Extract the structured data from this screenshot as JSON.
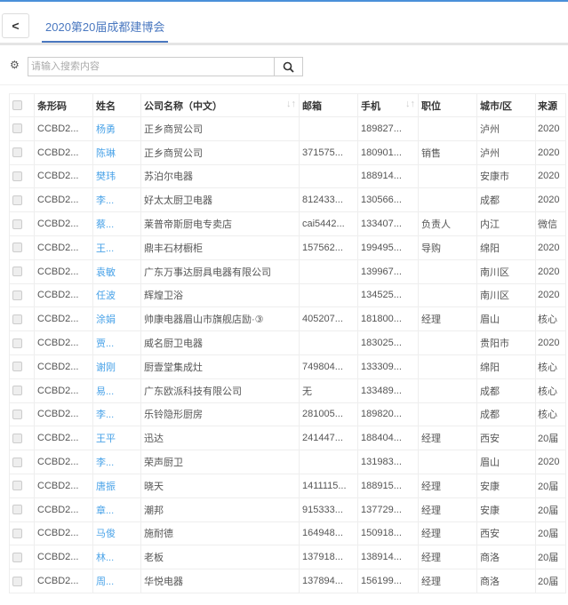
{
  "header": {
    "back_label": "<",
    "tab": "2020第20届成都建博会"
  },
  "search": {
    "placeholder": "请输入搜索内容"
  },
  "icons": {
    "settings": "gear-icon",
    "search": "search-icon",
    "sort": "sort-icon"
  },
  "table": {
    "columns": [
      "条形码",
      "姓名",
      "公司名称（中文）",
      "邮箱",
      "手机",
      "职位",
      "城市/区",
      "来源"
    ],
    "rows": [
      [
        "CCBD2...",
        "杨勇",
        "正乡商贸公司",
        "",
        "189827...",
        "",
        "泸州",
        "2020"
      ],
      [
        "CCBD2...",
        "陈琳",
        "正乡商贸公司",
        "371575...",
        "180901...",
        "销售",
        "泸州",
        "2020"
      ],
      [
        "CCBD2...",
        "樊玮",
        "苏泊尔电器",
        "",
        "188914...",
        "",
        "安康市",
        "2020"
      ],
      [
        "CCBD2...",
        "李...",
        "好太太厨卫电器",
        "812433...",
        "130566...",
        "",
        "成都",
        "2020"
      ],
      [
        "CCBD2...",
        "蔡...",
        "莱普帝斯厨电专卖店",
        "cai5442...",
        "133407...",
        "负责人",
        "内江",
        "微信"
      ],
      [
        "CCBD2...",
        "王...",
        "鼎丰石材橱柜",
        "157562...",
        "199495...",
        "导购",
        "绵阳",
        "2020"
      ],
      [
        "CCBD2...",
        "袁敏",
        "广东万事达厨具电器有限公司",
        "",
        "139967...",
        "",
        "南川区",
        "2020"
      ],
      [
        "CCBD2...",
        "任波",
        "辉煌卫浴",
        "",
        "134525...",
        "",
        "南川区",
        "2020"
      ],
      [
        "CCBD2...",
        "涂娟",
        "帅康电器眉山市旗舰店励·③",
        "405207...",
        "181800...",
        "经理",
        "眉山",
        "核心"
      ],
      [
        "CCBD2...",
        "贾...",
        "威名厨卫电器",
        "",
        "183025...",
        "",
        "贵阳市",
        "2020"
      ],
      [
        "CCBD2...",
        "谢刚",
        "厨壹堂集成灶",
        "749804...",
        "133309...",
        "",
        "绵阳",
        "核心"
      ],
      [
        "CCBD2...",
        "易...",
        "广东欧派科技有限公司",
        "无",
        "133489...",
        "",
        "成都",
        "核心"
      ],
      [
        "CCBD2...",
        "李...",
        "乐铃隐形厨房",
        "281005...",
        "189820...",
        "",
        "成都",
        "核心"
      ],
      [
        "CCBD2...",
        "王平",
        "迅达",
        "241447...",
        "188404...",
        "经理",
        "西安",
        "20届"
      ],
      [
        "CCBD2...",
        "李...",
        "荣声厨卫",
        "",
        "131983...",
        "",
        "眉山",
        "2020"
      ],
      [
        "CCBD2...",
        "唐振",
        "晓天",
        "1411115...",
        "188915...",
        "经理",
        "安康",
        "20届"
      ],
      [
        "CCBD2...",
        "章...",
        "潮邦",
        "915333...",
        "137729...",
        "经理",
        "安康",
        "20届"
      ],
      [
        "CCBD2...",
        "马俊",
        "施耐德",
        "164948...",
        "150918...",
        "经理",
        "西安",
        "20届"
      ],
      [
        "CCBD2...",
        "林...",
        "老板",
        "137918...",
        "138914...",
        "经理",
        "商洛",
        "20届"
      ],
      [
        "CCBD2...",
        "周...",
        "华悦电器",
        "137894...",
        "156199...",
        "经理",
        "商洛",
        "20届"
      ]
    ]
  }
}
